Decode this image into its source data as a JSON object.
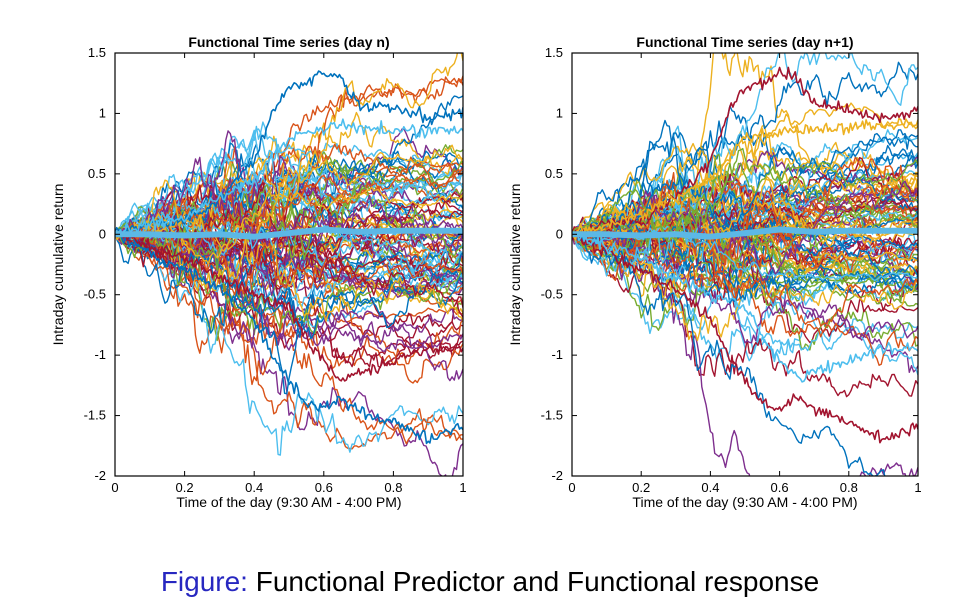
{
  "caption": {
    "label": "Figure:",
    "text": "Functional Predictor and Functional response"
  },
  "colors": {
    "background": "#ffffff",
    "axis": "#000000",
    "caption_label": "#2727c0",
    "mean_curve": "#5cb8e6",
    "palette": [
      "#0072BD",
      "#D95319",
      "#EDB120",
      "#7E2F8E",
      "#77AC30",
      "#4DBEEE",
      "#A2142F"
    ]
  },
  "chart_data": [
    {
      "type": "line",
      "title": "Functional Time series (day n)",
      "xlabel": "Time of the day (9:30 AM - 4:00 PM)",
      "ylabel": "Intraday cumulative return",
      "xlim": [
        0,
        1
      ],
      "ylim": [
        -2,
        1.5
      ],
      "xticks": [
        0,
        0.2,
        0.4,
        0.6,
        0.8,
        1
      ],
      "yticks": [
        -2,
        -1.5,
        -1,
        -0.5,
        0,
        0.5,
        1,
        1.5
      ],
      "xtick_labels": [
        "0",
        "0.2",
        "0.4",
        "0.6",
        "0.8",
        "1"
      ],
      "ytick_labels": [
        "-2",
        "-1.5",
        "-1",
        "-0.5",
        "0",
        "0.5",
        "1",
        "1.5"
      ],
      "grid": false,
      "num_curves": 100,
      "seed": 11,
      "highlighted_series": [
        {
          "color": "#0072BD",
          "x": [
            0,
            0.1,
            0.2,
            0.3,
            0.4,
            0.45,
            0.5,
            0.55,
            0.6,
            0.65,
            0.7,
            0.8,
            0.9,
            1
          ],
          "y": [
            0,
            0.08,
            0.12,
            0.3,
            0.6,
            1.0,
            1.22,
            1.25,
            1.33,
            1.3,
            1.06,
            1.05,
            0.95,
            1.02
          ]
        },
        {
          "color": "#0072BD",
          "x": [
            0,
            0.1,
            0.2,
            0.3,
            0.4,
            0.45,
            0.5,
            0.55,
            0.6,
            0.65,
            0.7,
            0.8,
            0.9,
            1
          ],
          "y": [
            0,
            -0.15,
            -0.3,
            -0.45,
            -0.7,
            -1.0,
            -1.2,
            -1.4,
            -1.45,
            -1.35,
            -1.45,
            -1.55,
            -1.7,
            -1.58
          ]
        },
        {
          "color": "#A2142F",
          "x": [
            0,
            0.1,
            0.2,
            0.3,
            0.4,
            0.5,
            0.55,
            0.6,
            0.65,
            0.7,
            0.8,
            0.9,
            1
          ],
          "y": [
            0,
            -0.1,
            -0.2,
            -0.35,
            -0.5,
            -0.6,
            -0.85,
            -1.05,
            -1.2,
            -1.15,
            -1.05,
            -0.95,
            -0.95
          ]
        },
        {
          "color": "#4DBEEE",
          "x": [
            0,
            0.2,
            0.4,
            0.5,
            0.6,
            0.7,
            0.8,
            0.9,
            1
          ],
          "y": [
            0,
            0.15,
            0.45,
            0.8,
            0.9,
            0.88,
            0.85,
            0.85,
            0.86
          ]
        }
      ],
      "mean_series": {
        "color": "#5cb8e6",
        "x": [
          0,
          0.1,
          0.2,
          0.3,
          0.4,
          0.5,
          0.6,
          0.7,
          0.8,
          0.9,
          1
        ],
        "y": [
          0,
          0.0,
          -0.01,
          0.0,
          -0.02,
          0.01,
          0.04,
          0.02,
          0.03,
          0.03,
          0.03
        ]
      }
    },
    {
      "type": "line",
      "title": "Functional Time series (day n+1)",
      "xlabel": "Time of the day (9:30 AM - 4:00 PM)",
      "ylabel": "Intraday cumulative return",
      "xlim": [
        0,
        1
      ],
      "ylim": [
        -2,
        1.5
      ],
      "xticks": [
        0,
        0.2,
        0.4,
        0.6,
        0.8,
        1
      ],
      "yticks": [
        -2,
        -1.5,
        -1,
        -0.5,
        0,
        0.5,
        1,
        1.5
      ],
      "xtick_labels": [
        "0",
        "0.2",
        "0.4",
        "0.6",
        "0.8",
        "1"
      ],
      "ytick_labels": [
        "-2",
        "-1.5",
        "-1",
        "-0.5",
        "0",
        "0.5",
        "1",
        "1.5"
      ],
      "grid": false,
      "num_curves": 100,
      "seed": 29,
      "highlighted_series": [
        {
          "color": "#A2142F",
          "x": [
            0,
            0.1,
            0.2,
            0.3,
            0.4,
            0.45,
            0.5,
            0.55,
            0.6,
            0.65,
            0.7,
            0.8,
            0.9,
            1
          ],
          "y": [
            0,
            0.08,
            0.12,
            0.3,
            0.6,
            1.0,
            1.22,
            1.25,
            1.33,
            1.3,
            1.06,
            1.05,
            0.95,
            1.02
          ]
        },
        {
          "color": "#A2142F",
          "x": [
            0,
            0.1,
            0.2,
            0.3,
            0.4,
            0.45,
            0.5,
            0.55,
            0.6,
            0.65,
            0.7,
            0.8,
            0.9,
            1
          ],
          "y": [
            0,
            -0.15,
            -0.3,
            -0.45,
            -0.7,
            -1.0,
            -1.2,
            -1.4,
            -1.45,
            -1.35,
            -1.45,
            -1.55,
            -1.7,
            -1.58
          ]
        },
        {
          "color": "#4DBEEE",
          "x": [
            0,
            0.1,
            0.2,
            0.3,
            0.4,
            0.5,
            0.55,
            0.6,
            0.65,
            0.7,
            0.8,
            0.9,
            1
          ],
          "y": [
            0,
            -0.1,
            -0.2,
            -0.35,
            -0.5,
            -0.6,
            -0.85,
            -1.05,
            -1.2,
            -1.15,
            -1.05,
            -0.95,
            -0.95
          ]
        },
        {
          "color": "#EDB120",
          "x": [
            0,
            0.2,
            0.4,
            0.5,
            0.6,
            0.7,
            0.8,
            0.9,
            1
          ],
          "y": [
            0,
            0.15,
            0.45,
            0.8,
            0.85,
            0.86,
            0.88,
            0.9,
            0.92
          ]
        }
      ],
      "mean_series": {
        "color": "#5cb8e6",
        "x": [
          0,
          0.1,
          0.2,
          0.3,
          0.4,
          0.5,
          0.6,
          0.7,
          0.8,
          0.9,
          1
        ],
        "y": [
          0,
          0.0,
          -0.01,
          0.0,
          -0.02,
          0.01,
          0.04,
          0.02,
          0.03,
          0.03,
          0.03
        ]
      }
    }
  ]
}
